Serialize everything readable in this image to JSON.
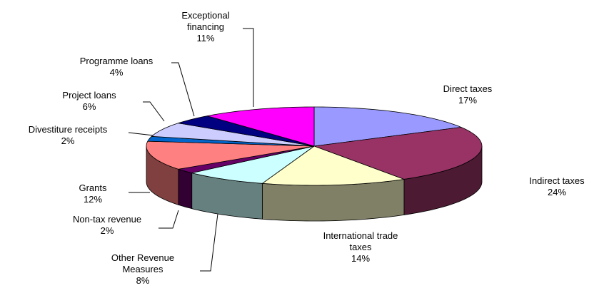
{
  "chart_data": {
    "type": "pie3d",
    "categories": [
      "Direct taxes",
      "Indirect taxes",
      "International trade taxes",
      "Other Revenue Measures",
      "Non-tax revenue",
      "Grants",
      "Divestiture receipts",
      "Project loans",
      "Programme loans",
      "Exceptional financing"
    ],
    "values": [
      17,
      24,
      14,
      8,
      2,
      12,
      2,
      6,
      4,
      11
    ],
    "value_labels": [
      "17%",
      "24%",
      "14%",
      "8%",
      "2%",
      "12%",
      "2%",
      "6%",
      "4%",
      "11%"
    ],
    "colors": [
      "#9999ff",
      "#993366",
      "#ffffcc",
      "#ccffff",
      "#660066",
      "#ff8080",
      "#0066cc",
      "#ccccff",
      "#000080",
      "#ff00ff"
    ]
  }
}
